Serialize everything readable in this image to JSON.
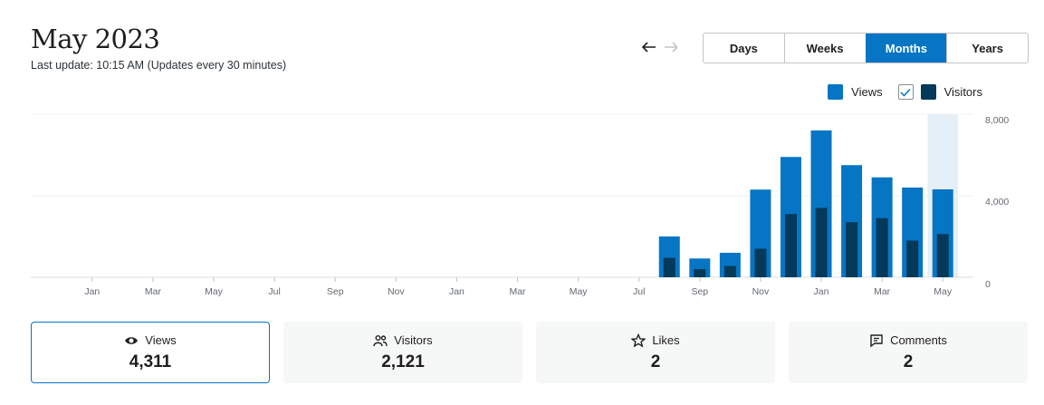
{
  "header": {
    "title": "May 2023",
    "subtitle": "Last update: 10:15 AM (Updates every 30 minutes)"
  },
  "tabs": [
    "Days",
    "Weeks",
    "Months",
    "Years"
  ],
  "active_tab": 2,
  "chart_data": {
    "type": "bar",
    "categories": [
      null,
      "Jan",
      null,
      "Mar",
      null,
      "May",
      null,
      "Jul",
      null,
      "Sep",
      null,
      "Nov",
      null,
      "Jan",
      null,
      "Mar",
      null,
      "May",
      null,
      "Jul",
      null,
      "Sep",
      null,
      "Nov",
      null,
      "Jan",
      null,
      "Mar",
      null,
      "May"
    ],
    "series": [
      {
        "name": "Views",
        "color": "#0675c4",
        "values": [
          0,
          0,
          0,
          0,
          0,
          0,
          0,
          0,
          0,
          0,
          0,
          0,
          0,
          0,
          0,
          0,
          0,
          0,
          0,
          0,
          2000,
          920,
          1200,
          4300,
          5900,
          7200,
          5500,
          4900,
          4400,
          4311
        ]
      },
      {
        "name": "Visitors",
        "color": "#043959",
        "values": [
          0,
          0,
          0,
          0,
          0,
          0,
          0,
          0,
          0,
          0,
          0,
          0,
          0,
          0,
          0,
          0,
          0,
          0,
          0,
          0,
          950,
          400,
          550,
          1400,
          3100,
          3400,
          2700,
          2900,
          1800,
          2121
        ]
      }
    ],
    "ylim": [
      0,
      8000
    ],
    "yticks": [
      0,
      {
        "value": 4000,
        "label": "4,000"
      },
      {
        "value": 8000,
        "label": "8,000"
      }
    ],
    "grid": true,
    "highlight": 29
  },
  "stats": [
    {
      "label": "Views",
      "value": "4,311"
    },
    {
      "label": "Visitors",
      "value": "2,121"
    },
    {
      "label": "Likes",
      "value": "2"
    },
    {
      "label": "Comments",
      "value": "2"
    }
  ]
}
